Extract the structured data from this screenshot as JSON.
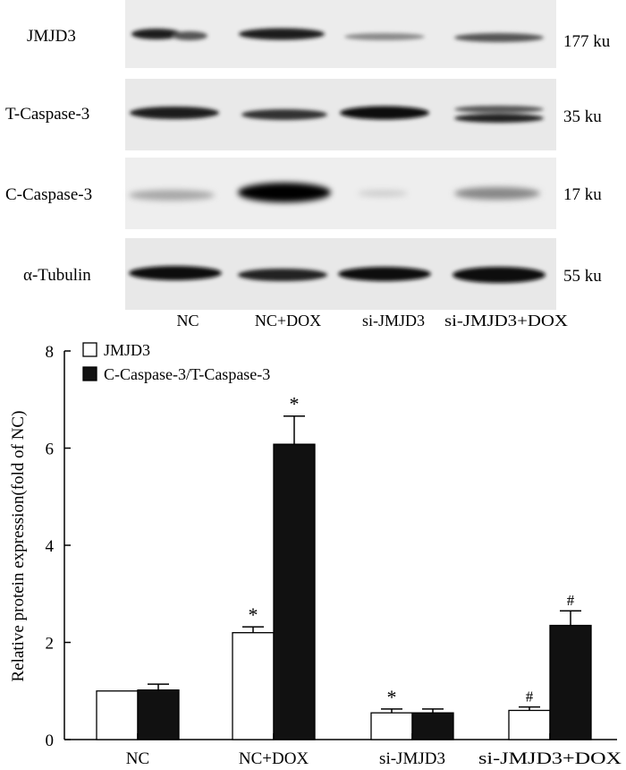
{
  "blot": {
    "rows": [
      {
        "protein": "JMJD3",
        "size": "177 ku"
      },
      {
        "protein": "T-Caspase-3",
        "size": "35 ku"
      },
      {
        "protein": "C-Caspase-3",
        "size": "17 ku"
      },
      {
        "protein": "α-Tubulin",
        "size": "55 ku"
      }
    ],
    "lanes": [
      "NC",
      "NC+DOX",
      "si-JMJD3",
      "si-JMJD3+DOX"
    ]
  },
  "chart_data": {
    "type": "bar",
    "title": "",
    "xlabel": "",
    "ylabel": "Relative protein expression(fold of NC)",
    "ylim": [
      0,
      8
    ],
    "yticks": [
      0,
      2,
      4,
      6,
      8
    ],
    "grid": false,
    "legend_position": "top-left",
    "categories": [
      "NC",
      "NC+DOX",
      "si-JMJD3",
      "si-JMJD3+DOX"
    ],
    "series": [
      {
        "name": "JMJD3",
        "fill": "#ffffff",
        "values": [
          1.0,
          2.2,
          0.55,
          0.6
        ],
        "errors": [
          0.0,
          0.12,
          0.08,
          0.07
        ],
        "annotations": [
          "",
          "*",
          "*",
          "#"
        ]
      },
      {
        "name": "C-Caspase-3/T-Caspase-3",
        "fill": "#111111",
        "values": [
          1.02,
          6.08,
          0.55,
          2.35
        ],
        "errors": [
          0.12,
          0.58,
          0.08,
          0.3
        ],
        "annotations": [
          "",
          "*",
          "",
          "#"
        ]
      }
    ]
  }
}
